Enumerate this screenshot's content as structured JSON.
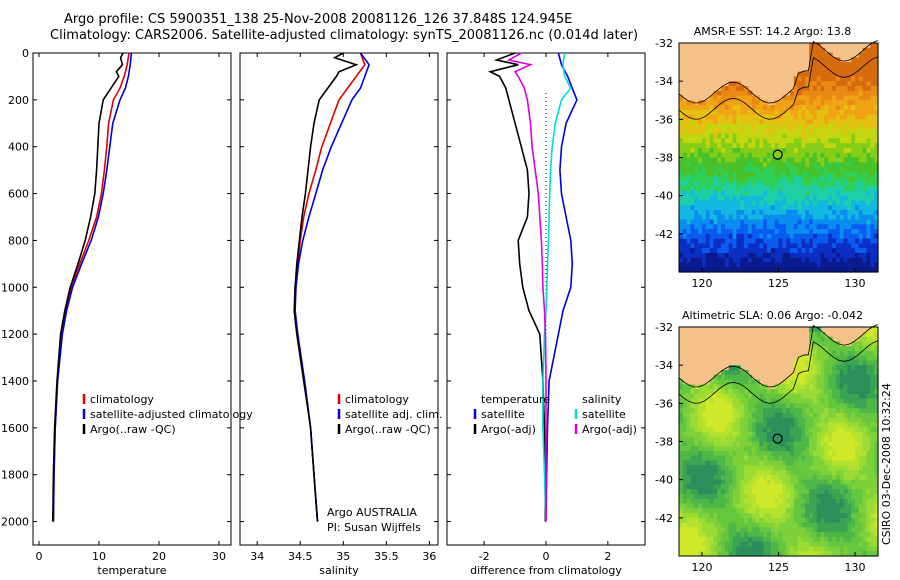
{
  "header": {
    "title_line1": "Argo profile: CS 5900351_138 25-Nov-2008 20081126_126 37.848S 124.945E",
    "title_line2": "Climatology: CARS2006. Satellite-adjusted climatology: synTS_20081126.nc (0.014d later)"
  },
  "stamp": "CSIRO 03-Dec-2008 10:32:24",
  "colors": {
    "climatology": "#e00000",
    "satellite": "#0000e0",
    "argo": "#000000",
    "salinity_satellite": "#00dddd",
    "salinity_argo": "#e000e0",
    "land": "#f5c28c"
  },
  "chart_data": [
    {
      "type": "line",
      "xlabel": "temperature",
      "ylabel": "",
      "xlim": [
        -1,
        32
      ],
      "ylim": [
        0,
        2100
      ],
      "xticks": [
        "0",
        "10",
        "20",
        "30"
      ],
      "yticks": [
        "0",
        "200",
        "400",
        "600",
        "800",
        "1000",
        "1200",
        "1400",
        "1600",
        "1800",
        "2000"
      ],
      "legend": [
        "climatology",
        "satellite-adjusted climatology",
        "Argo(..raw -QC)"
      ],
      "series": [
        {
          "name": "climatology",
          "color": "#e00000",
          "depth": [
            0,
            50,
            100,
            150,
            200,
            300,
            400,
            500,
            600,
            700,
            800,
            900,
            1000,
            1100,
            1200,
            1400,
            1600,
            1800,
            2000
          ],
          "values": [
            15.0,
            14.7,
            14.2,
            13.5,
            12.4,
            11.6,
            11.3,
            10.9,
            10.4,
            9.6,
            8.3,
            6.8,
            5.4,
            4.5,
            3.8,
            3.1,
            2.7,
            2.5,
            2.4
          ]
        },
        {
          "name": "satellite-adjusted climatology",
          "color": "#0000e0",
          "depth": [
            0,
            50,
            100,
            150,
            200,
            300,
            400,
            500,
            600,
            700,
            800,
            900,
            1000,
            1100,
            1200,
            1400,
            1600,
            1800,
            2000
          ],
          "values": [
            15.4,
            15.2,
            14.9,
            14.4,
            13.5,
            12.3,
            11.8,
            11.3,
            10.7,
            9.9,
            8.7,
            7.1,
            5.6,
            4.6,
            3.9,
            3.1,
            2.7,
            2.5,
            2.4
          ]
        },
        {
          "name": "Argo(..raw -QC)",
          "color": "#000000",
          "depth": [
            0,
            20,
            50,
            80,
            100,
            150,
            200,
            300,
            400,
            500,
            600,
            700,
            800,
            900,
            1000,
            1100,
            1200,
            1400,
            1600,
            1800,
            2000
          ],
          "values": [
            14.0,
            13.6,
            13.9,
            12.9,
            13.3,
            12.0,
            10.7,
            10.0,
            9.8,
            9.6,
            9.3,
            8.6,
            7.7,
            6.5,
            5.2,
            4.3,
            3.6,
            3.0,
            2.6,
            2.4,
            2.3
          ]
        }
      ]
    },
    {
      "type": "line",
      "xlabel": "salinity",
      "ylabel": "",
      "xlim": [
        33.8,
        36.1
      ],
      "ylim": [
        0,
        2100
      ],
      "xticks": [
        "34",
        "34.5",
        "35",
        "35.5",
        "36"
      ],
      "yticks": [],
      "legend": [
        "climatology",
        "satellite adj. clim.",
        "Argo(..raw -QC)"
      ],
      "annotation": [
        "Argo AUSTRALIA",
        "PI: Susan Wijffels"
      ],
      "series": [
        {
          "name": "climatology",
          "color": "#e00000",
          "depth": [
            0,
            50,
            100,
            150,
            200,
            300,
            400,
            500,
            600,
            700,
            800,
            900,
            1000,
            1100,
            1200,
            1400,
            1600,
            1800,
            2000
          ],
          "values": [
            35.2,
            35.25,
            35.15,
            35.05,
            34.95,
            34.85,
            34.75,
            34.68,
            34.6,
            34.54,
            34.5,
            34.47,
            34.44,
            34.44,
            34.47,
            34.55,
            34.62,
            34.66,
            34.7
          ]
        },
        {
          "name": "satellite adj. clim.",
          "color": "#0000e0",
          "depth": [
            0,
            50,
            100,
            150,
            200,
            300,
            400,
            500,
            600,
            700,
            800,
            900,
            1000,
            1100,
            1200,
            1400,
            1600,
            1800,
            2000
          ],
          "values": [
            35.2,
            35.3,
            35.25,
            35.2,
            35.1,
            34.98,
            34.86,
            34.76,
            34.68,
            34.6,
            34.53,
            34.48,
            34.45,
            34.44,
            34.47,
            34.55,
            34.62,
            34.66,
            34.7
          ]
        },
        {
          "name": "Argo(..raw -QC)",
          "color": "#000000",
          "depth": [
            0,
            20,
            50,
            80,
            100,
            150,
            200,
            300,
            400,
            500,
            600,
            700,
            800,
            900,
            1000,
            1100,
            1200,
            1400,
            1600,
            1800,
            2000
          ],
          "values": [
            35.0,
            34.9,
            35.15,
            34.95,
            34.92,
            34.82,
            34.72,
            34.66,
            34.62,
            34.59,
            34.56,
            34.52,
            34.49,
            34.46,
            34.44,
            34.43,
            34.46,
            34.54,
            34.62,
            34.66,
            34.7
          ]
        }
      ]
    },
    {
      "type": "line",
      "xlabel": "difference from climatology",
      "ylabel": "",
      "xlim": [
        -3.2,
        3.2
      ],
      "ylim": [
        0,
        2100
      ],
      "xticks": [
        "-2",
        "0",
        "2"
      ],
      "yticks": [],
      "legend_temperature": [
        "temperature",
        "satellite",
        "Argo(-adj)"
      ],
      "legend_salinity": [
        "salinity",
        "satellite",
        "Argo(-adj)"
      ],
      "series": [
        {
          "name": "temperature satellite",
          "color": "#0000e0",
          "depth": [
            0,
            50,
            100,
            200,
            300,
            400,
            500,
            600,
            700,
            800,
            900,
            1000,
            1100,
            1200,
            1400,
            1600,
            1800,
            2000
          ],
          "values": [
            0.4,
            0.5,
            0.7,
            1.0,
            0.65,
            0.5,
            0.45,
            0.5,
            0.65,
            0.8,
            0.85,
            0.8,
            0.55,
            0.4,
            0.1,
            0.05,
            0.02,
            0.0
          ]
        },
        {
          "name": "temperature Argo(-adj)",
          "color": "#000000",
          "depth": [
            0,
            30,
            50,
            80,
            100,
            150,
            200,
            300,
            400,
            500,
            600,
            700,
            800,
            900,
            1000,
            1100,
            1200,
            1400,
            1600,
            1800,
            2000
          ],
          "values": [
            -1.0,
            -1.6,
            -0.9,
            -1.8,
            -1.5,
            -1.3,
            -1.2,
            -1.0,
            -0.8,
            -0.6,
            -0.55,
            -0.6,
            -0.9,
            -0.85,
            -0.75,
            -0.55,
            -0.2,
            -0.1,
            -0.05,
            -0.03,
            -0.02
          ]
        },
        {
          "name": "salinity satellite",
          "color": "#00dddd",
          "depth": [
            0,
            50,
            100,
            150,
            200,
            300,
            400,
            500,
            600,
            700,
            800,
            900,
            1000,
            1100,
            1200,
            1400,
            1600,
            1800,
            2000
          ],
          "values": [
            0.6,
            0.55,
            0.6,
            0.8,
            0.5,
            0.3,
            0.2,
            0.15,
            0.12,
            0.1,
            0.08,
            0.05,
            0.03,
            0.0,
            -0.05,
            -0.1,
            -0.1,
            -0.05,
            0.0
          ]
        },
        {
          "name": "salinity Argo(-adj)",
          "color": "#e000e0",
          "depth": [
            0,
            30,
            50,
            80,
            100,
            150,
            200,
            300,
            400,
            500,
            600,
            700,
            800,
            900,
            1000,
            1100,
            1200,
            1400,
            1600,
            1800,
            2000
          ],
          "values": [
            -0.8,
            -1.2,
            -0.5,
            -1.0,
            -0.9,
            -0.7,
            -0.6,
            -0.5,
            -0.45,
            -0.35,
            -0.25,
            -0.2,
            -0.15,
            -0.12,
            -0.1,
            -0.05,
            -0.02,
            0.0,
            0.0,
            0.0,
            0.0
          ]
        }
      ]
    },
    {
      "type": "heatmap",
      "title": "AMSR-E SST: 14.2 Argo: 13.8",
      "xlim": [
        118.5,
        131.5
      ],
      "ylim": [
        -44,
        -32
      ],
      "xticks": [
        "120",
        "125",
        "130"
      ],
      "yticks": [
        "-32",
        "-34",
        "-36",
        "-38",
        "-40",
        "-42"
      ],
      "marker": {
        "lon": 124.945,
        "lat": -37.848
      }
    },
    {
      "type": "heatmap",
      "title": "Altimetric SLA: 0.06 Argo: -0.042",
      "xlim": [
        118.5,
        131.5
      ],
      "ylim": [
        -44,
        -32
      ],
      "xticks": [
        "120",
        "125",
        "130"
      ],
      "yticks": [
        "-32",
        "-34",
        "-36",
        "-38",
        "-40",
        "-42"
      ],
      "marker": {
        "lon": 124.945,
        "lat": -37.848
      }
    }
  ]
}
